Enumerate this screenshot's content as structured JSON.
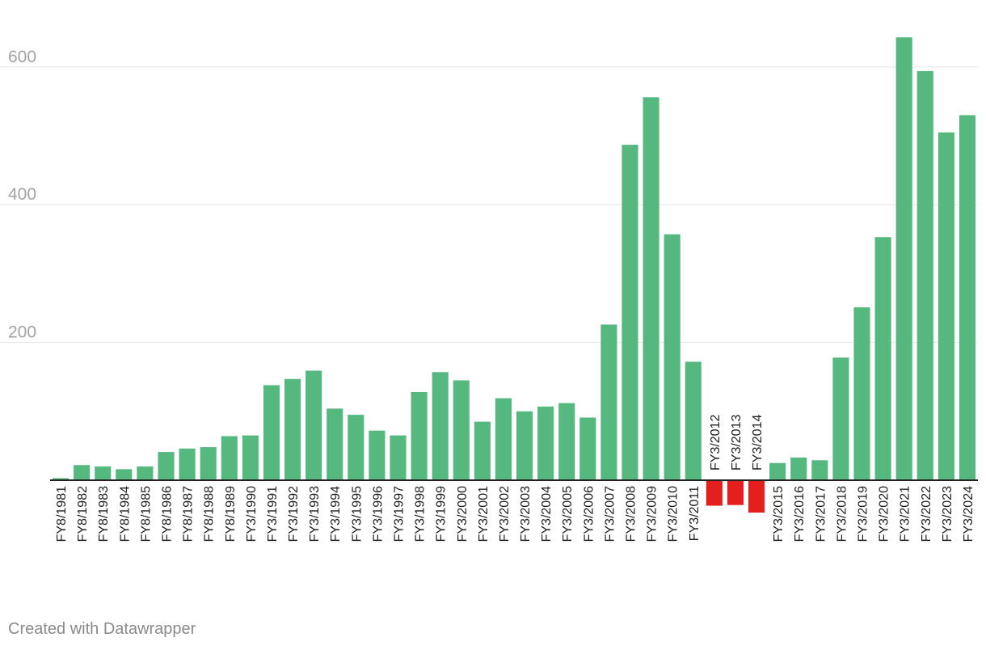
{
  "chart_data": {
    "type": "bar",
    "categories": [
      "FY8/1981",
      "FY8/1982",
      "FY8/1983",
      "FY8/1984",
      "FY8/1985",
      "FY8/1986",
      "FY8/1987",
      "FY8/1988",
      "FY8/1989",
      "FY3/1990",
      "FY3/1991",
      "FY3/1992",
      "FY3/1993",
      "FY3/1994",
      "FY3/1995",
      "FY3/1996",
      "FY3/1997",
      "FY3/1998",
      "FY3/1999",
      "FY3/2000",
      "FY3/2001",
      "FY3/2002",
      "FY3/2003",
      "FY3/2004",
      "FY3/2005",
      "FY3/2006",
      "FY3/2007",
      "FY3/2008",
      "FY3/2009",
      "FY3/2010",
      "FY3/2011",
      "FY3/2012",
      "FY3/2013",
      "FY3/2014",
      "FY3/2015",
      "FY3/2016",
      "FY3/2017",
      "FY3/2018",
      "FY3/2019",
      "FY3/2020",
      "FY3/2021",
      "FY3/2022",
      "FY3/2023",
      "FY3/2024"
    ],
    "values": [
      3,
      22,
      20,
      16,
      20,
      41,
      46,
      48,
      64,
      65,
      138,
      147,
      159,
      104,
      95,
      72,
      65,
      128,
      157,
      145,
      85,
      119,
      100,
      107,
      112,
      91,
      226,
      487,
      556,
      357,
      172,
      -37,
      -36,
      -47,
      25,
      33,
      29,
      178,
      251,
      353,
      643,
      594,
      505,
      530
    ],
    "title": "",
    "xlabel": "",
    "ylabel": "",
    "ylim": [
      -60,
      660
    ],
    "yticks": [
      200,
      400,
      600
    ],
    "grid": true,
    "colors": {
      "positive": "#55b87f",
      "negative": "#e51e1e"
    }
  },
  "credit": "Created with Datawrapper"
}
